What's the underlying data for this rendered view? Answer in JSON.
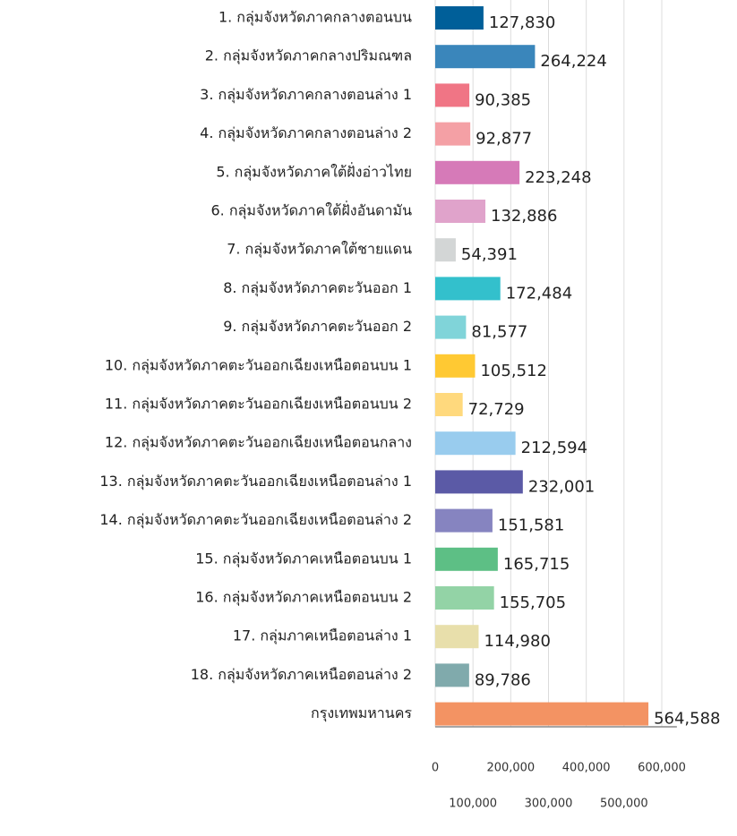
{
  "chart_data": {
    "type": "bar",
    "orientation": "horizontal",
    "categories": [
      "1. กลุ่มจังหวัดภาคกลางตอนบน",
      "2. กลุ่มจังหวัดภาคกลางปริมณฑล",
      "3. กลุ่มจังหวัดภาคกลางตอนล่าง 1",
      "4. กลุ่มจังหวัดภาคกลางตอนล่าง 2",
      "5. กลุ่มจังหวัดภาคใต้ฝั่งอ่าวไทย",
      "6. กลุ่มจังหวัดภาคใต้ฝั่งอันดามัน",
      "7. กลุ่มจังหวัดภาคใต้ชายแดน",
      "8. กลุ่มจังหวัดภาคตะวันออก 1",
      "9. กลุ่มจังหวัดภาคตะวันออก 2",
      "10. กลุ่มจังหวัดภาคตะวันออกเฉียงเหนือตอนบน 1",
      "11. กลุ่มจังหวัดภาคตะวันออกเฉียงเหนือตอนบน 2",
      "12. กลุ่มจังหวัดภาคตะวันออกเฉียงเหนือตอนกลาง",
      "13. กลุ่มจังหวัดภาคตะวันออกเฉียงเหนือตอนล่าง 1",
      "14. กลุ่มจังหวัดภาคตะวันออกเฉียงเหนือตอนล่าง 2",
      "15. กลุ่มจังหวัดภาคเหนือตอนบน 1",
      "16. กลุ่มจังหวัดภาคเหนือตอนบน 2",
      "17. กลุ่มภาคเหนือตอนล่าง 1",
      "18. กลุ่มจังหวัดภาคเหนือตอนล่าง 2",
      "กรุงเทพมหานคร"
    ],
    "values": [
      127830,
      264224,
      90385,
      92877,
      223248,
      132886,
      54391,
      172484,
      81577,
      105512,
      72729,
      212594,
      232001,
      151581,
      165715,
      155705,
      114980,
      89786,
      564588
    ],
    "value_labels": [
      "127,830",
      "264,224",
      "90,385",
      "92,877",
      "223,248",
      "132,886",
      "54,391",
      "172,484",
      "81,577",
      "105,512",
      "72,729",
      "212,594",
      "232,001",
      "151,581",
      "165,715",
      "155,705",
      "114,980",
      "89,786",
      "564,588"
    ],
    "colors": [
      "#005f99",
      "#3a86bb",
      "#f07585",
      "#f4a0a5",
      "#d67ab8",
      "#e0a3cb",
      "#d3d6d6",
      "#33c0cc",
      "#80d4d9",
      "#ffc933",
      "#ffd97d",
      "#99ccee",
      "#5b5aa6",
      "#8684c0",
      "#5dbf85",
      "#93d3a6",
      "#e8dfab",
      "#80aaac",
      "#f39363"
    ],
    "xlim": [
      0,
      640000
    ],
    "xticks": [
      0,
      {
        "value": 100000,
        "label": "100,000"
      },
      {
        "value": 200000,
        "label": "200,000"
      },
      {
        "value": 300000,
        "label": "300,000"
      },
      {
        "value": 400000,
        "label": "400,000"
      },
      {
        "value": 500000,
        "label": "500,000"
      },
      {
        "value": 600000,
        "label": "600,000"
      }
    ],
    "grid": true
  }
}
